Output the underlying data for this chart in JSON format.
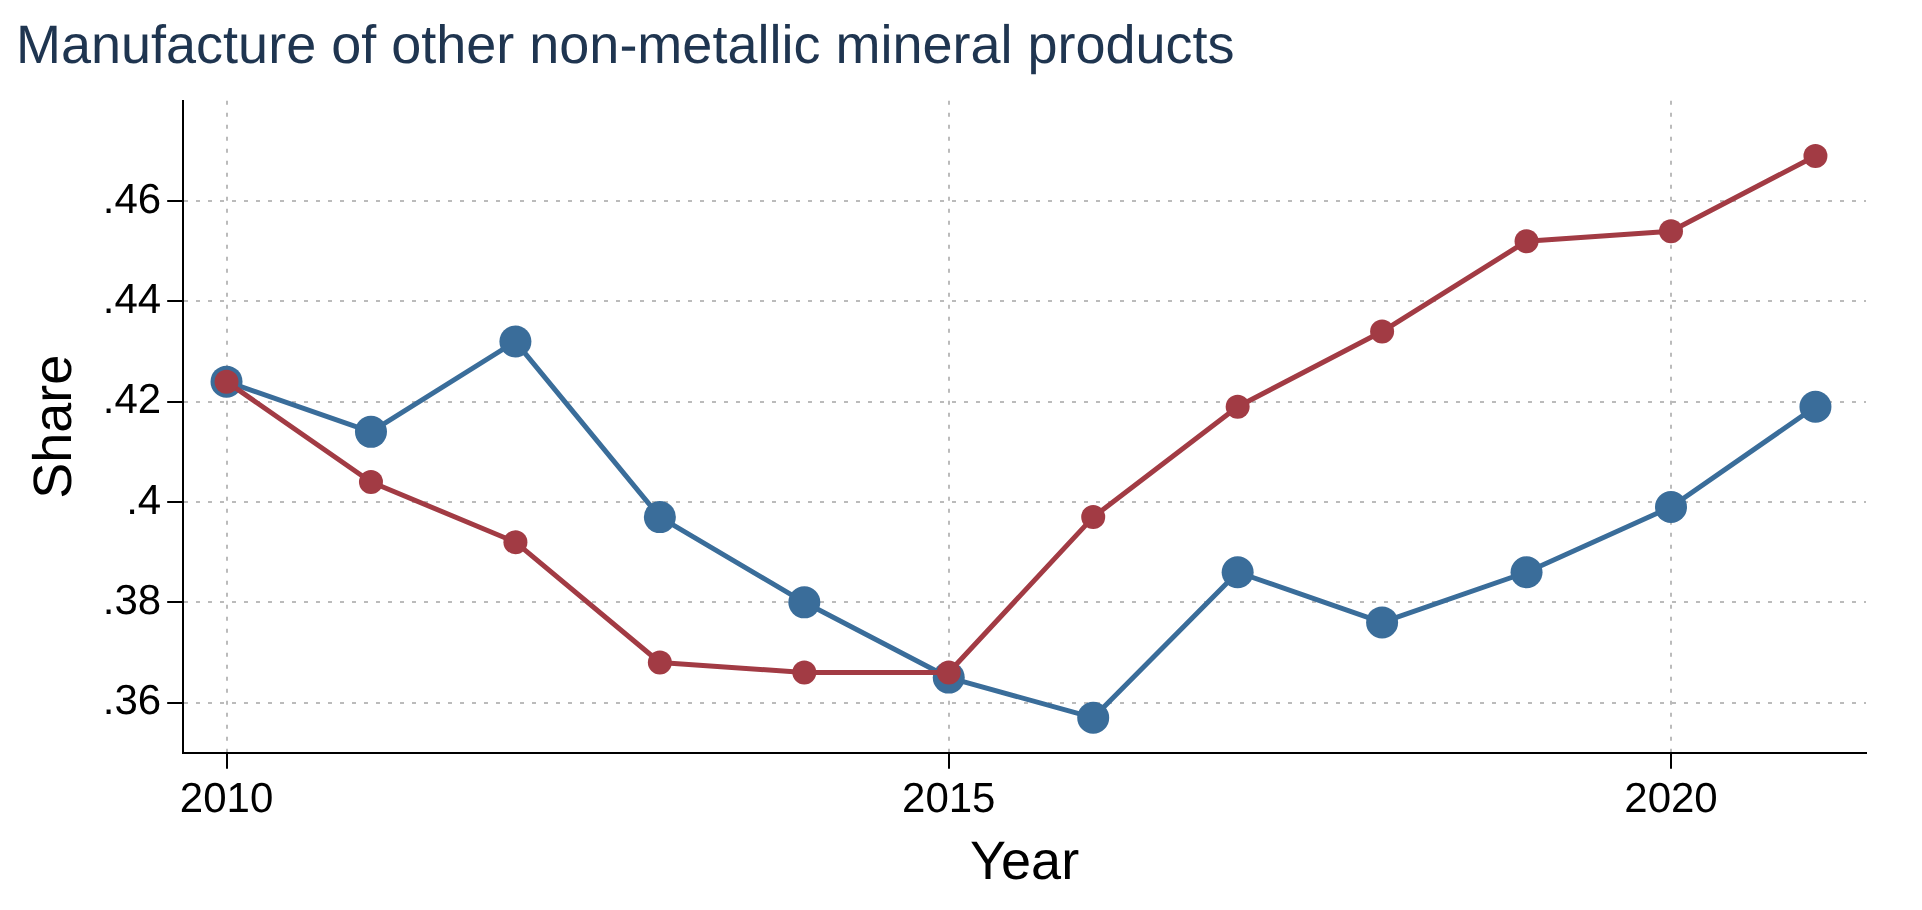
{
  "chart_data": {
    "type": "line",
    "title": "Manufacture of other non-metallic mineral products",
    "xlabel": "Year",
    "ylabel": "Share",
    "x": [
      2010,
      2011,
      2012,
      2013,
      2014,
      2015,
      2016,
      2017,
      2018,
      2019,
      2020,
      2021
    ],
    "series": [
      {
        "color": "#3a6d9a",
        "values": [
          0.424,
          0.414,
          0.432,
          0.397,
          0.38,
          0.365,
          0.357,
          0.386,
          0.376,
          0.386,
          0.399,
          0.419
        ]
      },
      {
        "color": "#a23b44",
        "values": [
          0.424,
          0.404,
          0.392,
          0.368,
          0.366,
          0.366,
          0.397,
          0.419,
          0.434,
          0.452,
          0.454,
          0.469
        ]
      }
    ],
    "xlim": [
      2009.7,
      2021.35
    ],
    "xticks": [
      2010,
      2015,
      2020
    ],
    "ylim": [
      0.35,
      0.48
    ],
    "yticks": [
      {
        "value": 0.36,
        "label": ".36"
      },
      {
        "value": 0.38,
        "label": ".38"
      },
      {
        "value": 0.4,
        "label": ".4"
      },
      {
        "value": 0.42,
        "label": ".42"
      },
      {
        "value": 0.44,
        "label": ".44"
      },
      {
        "value": 0.46,
        "label": ".46"
      }
    ],
    "grid": true,
    "legend": false,
    "marker": "circle",
    "line_style": "solid"
  }
}
